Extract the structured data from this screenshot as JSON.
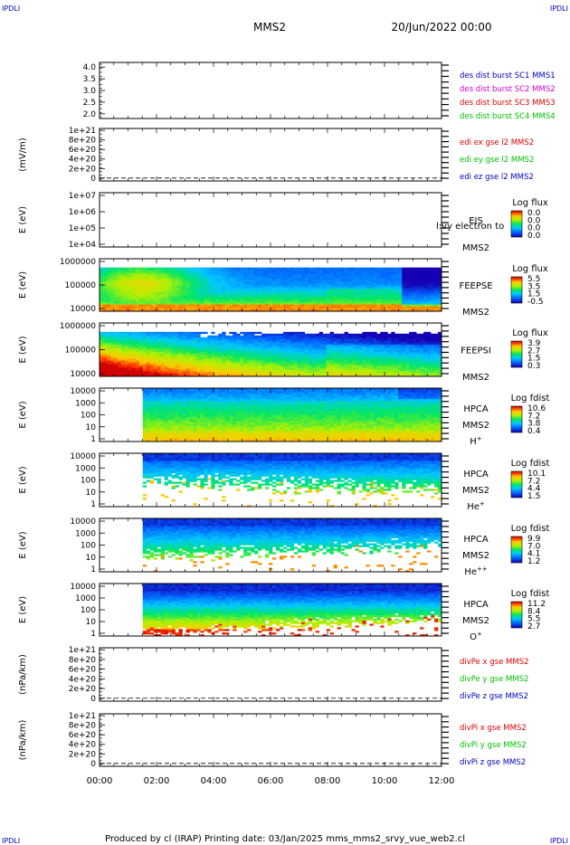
{
  "corner_marks": {
    "tl": "IPDLI",
    "tr": "IPDLI",
    "bl": "IPDLI",
    "br": "IPDLI"
  },
  "header": {
    "title": "MMS2",
    "date": "20/Jun/2022 00:00"
  },
  "footer": {
    "text": "Produced by cl (IRAP)   Printing date: 03/Jan/2025   mms_mms2_srvy_vue_web2.cl"
  },
  "colors": {
    "red": "#e00000",
    "magenta": "#d000d0",
    "green": "#00c000",
    "blue": "#0000c0"
  },
  "x_axis": {
    "ticks": [
      "00:00",
      "02:00",
      "04:00",
      "06:00",
      "08:00",
      "10:00",
      "12:00"
    ],
    "range_hours": [
      0,
      12
    ]
  },
  "chart_data": [
    {
      "type": "line",
      "panel": "dist",
      "ylabel": "",
      "y_ticks": [
        "4.0",
        "3.5",
        "3.0",
        "2.5",
        "2.0"
      ],
      "ylim": [
        1.8,
        4.2
      ],
      "legend": [
        {
          "name": "des dist burst SC1 MMS1",
          "color": "blue"
        },
        {
          "name": "des dist burst SC2 MMS2",
          "color": "magenta"
        },
        {
          "name": "des dist burst SC3 MMS3",
          "color": "red"
        },
        {
          "name": "des dist burst SC4 MMS4",
          "color": "green"
        }
      ]
    },
    {
      "type": "line",
      "panel": "edi",
      "ylabel": "(mV/m)",
      "y_ticks": [
        "1e+21",
        "8e+20",
        "6e+20",
        "4e+20",
        "2e+20",
        "0"
      ],
      "ylim": [
        -6e+19,
        1.04e+21
      ],
      "legend": [
        {
          "name": "edi ex gse l2 MMS2",
          "color": "red"
        },
        {
          "name": "edi ey gse l2 MMS2",
          "color": "green"
        },
        {
          "name": "edi ez gse l2 MMS2",
          "color": "blue"
        }
      ]
    },
    {
      "type": "heatmap",
      "panel": "eis",
      "ylabel": "E (eV)",
      "y_ticks": [
        "1e+07",
        "1e+06",
        "1e+05",
        "1e+04"
      ],
      "log_scale": true,
      "labels": [
        "EIS",
        "MMS2"
      ],
      "overlay": "l:vy electron to",
      "cbar_title": "Log flux",
      "cbar_ticks": [
        "0.0",
        "0.0",
        "0.0",
        "0.0"
      ]
    },
    {
      "type": "heatmap",
      "panel": "feepse",
      "ylabel": "E (eV)",
      "y_ticks": [
        "1000000",
        "100000",
        "10000"
      ],
      "log_scale": true,
      "labels": [
        "FEEPSE",
        "MMS2"
      ],
      "cbar_title": "Log flux",
      "cbar_ticks": [
        "5.5",
        "3.5",
        "1.5",
        "-0.5"
      ]
    },
    {
      "type": "heatmap",
      "panel": "feepsi",
      "ylabel": "E (eV)",
      "y_ticks": [
        "1000000",
        "100000",
        "10000"
      ],
      "log_scale": true,
      "labels": [
        "FEEPSI",
        "MMS2"
      ],
      "cbar_title": "Log flux",
      "cbar_ticks": [
        "3.9",
        "2.7",
        "1.5",
        "0.3"
      ]
    },
    {
      "type": "heatmap",
      "panel": "hpca_h",
      "ylabel": "E (eV)",
      "y_ticks": [
        "10000",
        "1000",
        "100",
        "10",
        "1"
      ],
      "log_scale": true,
      "labels": [
        "HPCA",
        "MMS2",
        "H+"
      ],
      "cbar_title": "Log fdist",
      "cbar_ticks": [
        "10.6",
        "7.2",
        "3.8",
        "0.4"
      ]
    },
    {
      "type": "heatmap",
      "panel": "hpca_he",
      "ylabel": "E (eV)",
      "y_ticks": [
        "10000",
        "1000",
        "100",
        "10",
        "1"
      ],
      "log_scale": true,
      "labels": [
        "HPCA",
        "MMS2",
        "He+"
      ],
      "cbar_title": "Log fdist",
      "cbar_ticks": [
        "10.1",
        "7.2",
        "4.4",
        "1.5"
      ]
    },
    {
      "type": "heatmap",
      "panel": "hpca_hepp",
      "ylabel": "E (eV)",
      "y_ticks": [
        "10000",
        "1000",
        "100",
        "10",
        "1"
      ],
      "log_scale": true,
      "labels": [
        "HPCA",
        "MMS2",
        "He++"
      ],
      "cbar_title": "Log fdist",
      "cbar_ticks": [
        "9.9",
        "7.0",
        "4.1",
        "1.2"
      ]
    },
    {
      "type": "heatmap",
      "panel": "hpca_o",
      "ylabel": "E (eV)",
      "y_ticks": [
        "10000",
        "1000",
        "100",
        "10",
        "1"
      ],
      "log_scale": true,
      "labels": [
        "HPCA",
        "MMS2",
        "O+"
      ],
      "cbar_title": "Log fdist",
      "cbar_ticks": [
        "11.2",
        "8.4",
        "5.5",
        "2.7"
      ]
    },
    {
      "type": "line",
      "panel": "divpe",
      "ylabel": "(nPa/km)",
      "y_ticks": [
        "1e+21",
        "8e+20",
        "6e+20",
        "4e+20",
        "2e+20",
        "0"
      ],
      "ylim": [
        -6e+19,
        1.04e+21
      ],
      "legend": [
        {
          "name": "divPe x gse MMS2",
          "color": "red"
        },
        {
          "name": "divPe y gse MMS2",
          "color": "green"
        },
        {
          "name": "divPe z gse MMS2",
          "color": "blue"
        }
      ]
    },
    {
      "type": "line",
      "panel": "divpi",
      "ylabel": "(nPa/km)",
      "y_ticks": [
        "1e+21",
        "8e+20",
        "6e+20",
        "4e+20",
        "2e+20",
        "0"
      ],
      "ylim": [
        -6e+19,
        1.04e+21
      ],
      "legend": [
        {
          "name": "divPi x gse MMS2",
          "color": "red"
        },
        {
          "name": "divPi y gse MMS2",
          "color": "green"
        },
        {
          "name": "divPi z gse MMS2",
          "color": "blue"
        }
      ]
    }
  ]
}
